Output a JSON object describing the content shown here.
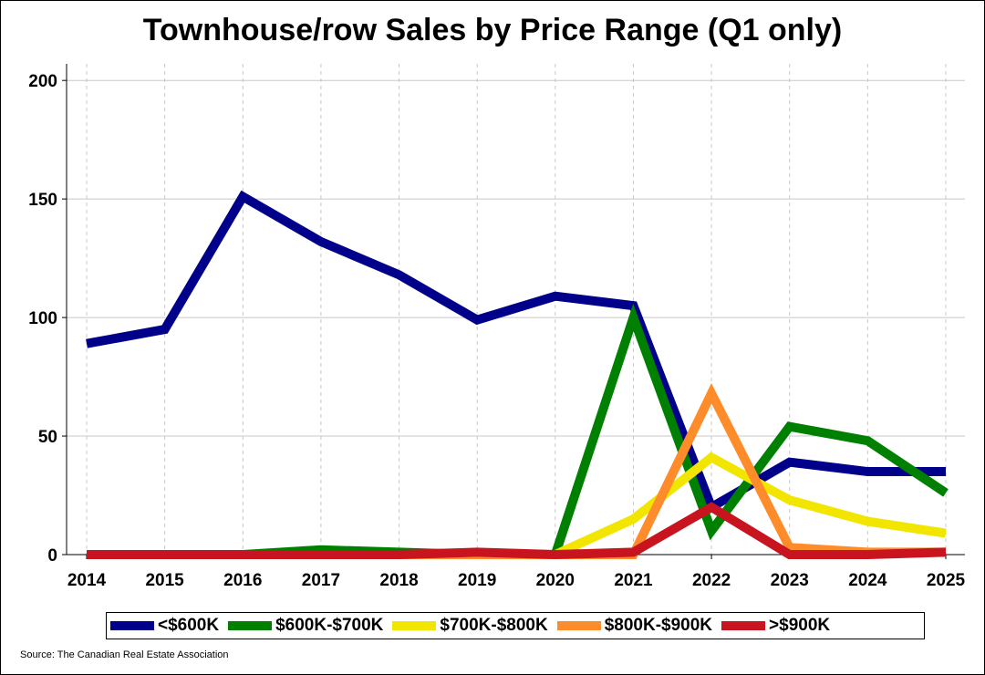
{
  "chart_data": {
    "type": "line",
    "title": "Townhouse/row Sales by Price Range (Q1 only)",
    "xlabel": "",
    "ylabel": "",
    "x": [
      "2014",
      "2015",
      "2016",
      "2017",
      "2018",
      "2019",
      "2020",
      "2021",
      "2022",
      "2023",
      "2024",
      "2025"
    ],
    "ylim": [
      0,
      207
    ],
    "yticks": [
      0,
      50,
      100,
      150,
      200
    ],
    "grid": true,
    "legend_position": "bottom",
    "series": [
      {
        "name": "<$600K",
        "color": "#00008B",
        "values": [
          89,
          95,
          151,
          132,
          118,
          99,
          109,
          105,
          20,
          39,
          35,
          35
        ]
      },
      {
        "name": "$600K-$700K",
        "color": "#008000",
        "values": [
          0,
          0,
          0,
          2,
          1,
          0,
          0,
          100,
          10,
          54,
          48,
          26
        ]
      },
      {
        "name": "$700K-$800K",
        "color": "#F2E600",
        "values": [
          0,
          0,
          0,
          0,
          0,
          0,
          0,
          15,
          41,
          23,
          14,
          9
        ]
      },
      {
        "name": "$800K-$900K",
        "color": "#FF8C2A",
        "values": [
          0,
          0,
          0,
          0,
          0,
          0,
          0,
          0,
          68,
          3,
          1,
          1
        ]
      },
      {
        "name": ">$900K",
        "color": "#C8141E",
        "values": [
          0,
          0,
          0,
          0,
          0,
          1,
          0,
          1,
          20,
          0,
          0,
          1
        ]
      }
    ]
  },
  "source": "Source: The Canadian Real Estate Association"
}
